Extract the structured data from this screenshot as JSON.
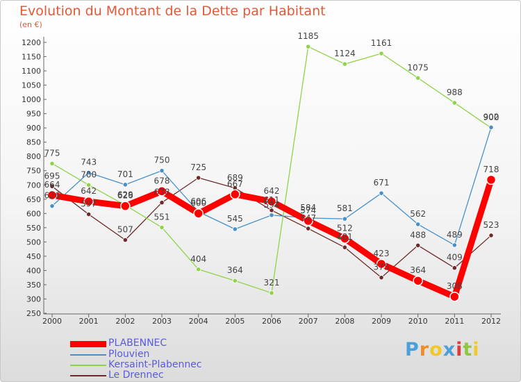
{
  "chart_data": {
    "type": "line",
    "title": "Evolution du Montant de la Dette par Habitant",
    "unit_label": "(en €)",
    "xlabel": "",
    "ylabel": "",
    "x": [
      "2000",
      "2001",
      "2002",
      "2003",
      "2004",
      "2005",
      "2006",
      "2007",
      "2008",
      "2009",
      "2010",
      "2011",
      "2012"
    ],
    "ylim": [
      250,
      1200
    ],
    "ytick_step": 50,
    "grid": false,
    "legend_position": "bottom-left",
    "series": [
      {
        "name": "PLABENNEC",
        "color": "#ff0000",
        "values": [
          664,
          642,
          626,
          678,
          600,
          667,
          642,
          574,
          512,
          423,
          364,
          308,
          718
        ],
        "labels": [
          "664",
          "642",
          "626",
          "678",
          "600",
          "667",
          "642",
          "574",
          "512",
          "423",
          "364",
          "308",
          "718"
        ]
      },
      {
        "name": "Plouvien",
        "color": "#4a90c8",
        "values": [
          626,
          743,
          701,
          750,
          606,
          545,
          594,
          584,
          581,
          671,
          562,
          489,
          902
        ],
        "labels": [
          "626",
          "743",
          "701",
          "750",
          "606",
          "545",
          "594",
          "584",
          "581",
          "671",
          "562",
          "489",
          "902"
        ]
      },
      {
        "name": "Kersaint-Plabennec",
        "color": "#8fd34a",
        "values": [
          775,
          700,
          629,
          551,
          404,
          364,
          321,
          1185,
          1124,
          1161,
          1075,
          988,
          900
        ],
        "labels": [
          "775",
          "700",
          "629",
          "551",
          "404",
          "364",
          "321",
          "1185",
          "1124",
          "1161",
          "1075",
          "988",
          "900"
        ]
      },
      {
        "name": "Le Drennec",
        "color": "#6e2a2a",
        "values": [
          695,
          597,
          507,
          638,
          725,
          689,
          611,
          547,
          481,
          375,
          488,
          409,
          523
        ],
        "labels": [
          "695",
          "597",
          "507",
          "638",
          "725",
          "689",
          "611",
          "547",
          "481",
          "375",
          "488",
          "409",
          "523"
        ]
      }
    ]
  },
  "brand": {
    "text": "Proxiti",
    "letter_colors": [
      "#4aa0dc",
      "#f08c28",
      "#f0c828",
      "#4aa0dc",
      "#e03c3c",
      "#8fc83c",
      "#f0c828"
    ]
  }
}
